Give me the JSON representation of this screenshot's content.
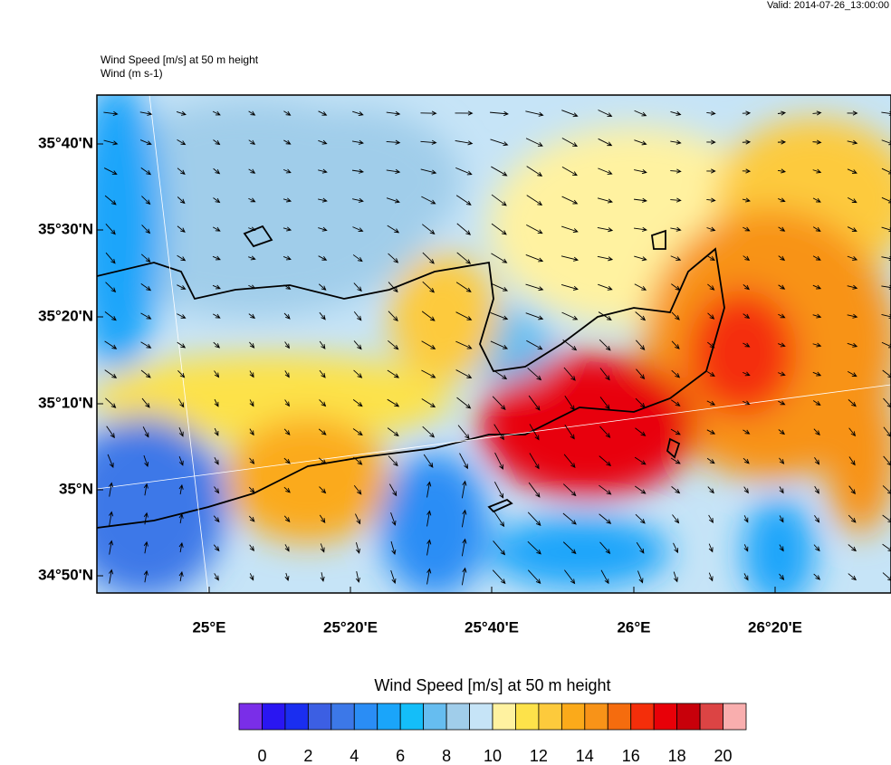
{
  "header": {
    "valid": "Valid: 2014-07-26_13:00:00",
    "title": "Wind Speed [m/s] at 50 m height",
    "subtitle": "Wind   (m s-1)"
  },
  "map": {
    "lat_labels": [
      "35°40'N",
      "35°30'N",
      "35°20'N",
      "35°10'N",
      "35°N",
      "34°50'N"
    ],
    "lon_labels": [
      "25°E",
      "25°20'E",
      "25°40'E",
      "26°E",
      "26°20'E"
    ]
  },
  "colorbar": {
    "title": "Wind Speed [m/s] at 50 m height",
    "labels": [
      0,
      2,
      4,
      6,
      8,
      10,
      12,
      14,
      16,
      18,
      20
    ],
    "colors": [
      "#7a2ee8",
      "#2a16f2",
      "#1a2ef0",
      "#3c5fe3",
      "#3c78e8",
      "#2a8df5",
      "#1aa5fa",
      "#14bef9",
      "#66bdf0",
      "#a0cdea",
      "#c6e4f7",
      "#fff2a0",
      "#fde24a",
      "#fdca3c",
      "#fbaa1a",
      "#f89318",
      "#f56c0e",
      "#f42e0a",
      "#e80008",
      "#c8000a",
      "#dc4444",
      "#f9aeae"
    ]
  }
}
